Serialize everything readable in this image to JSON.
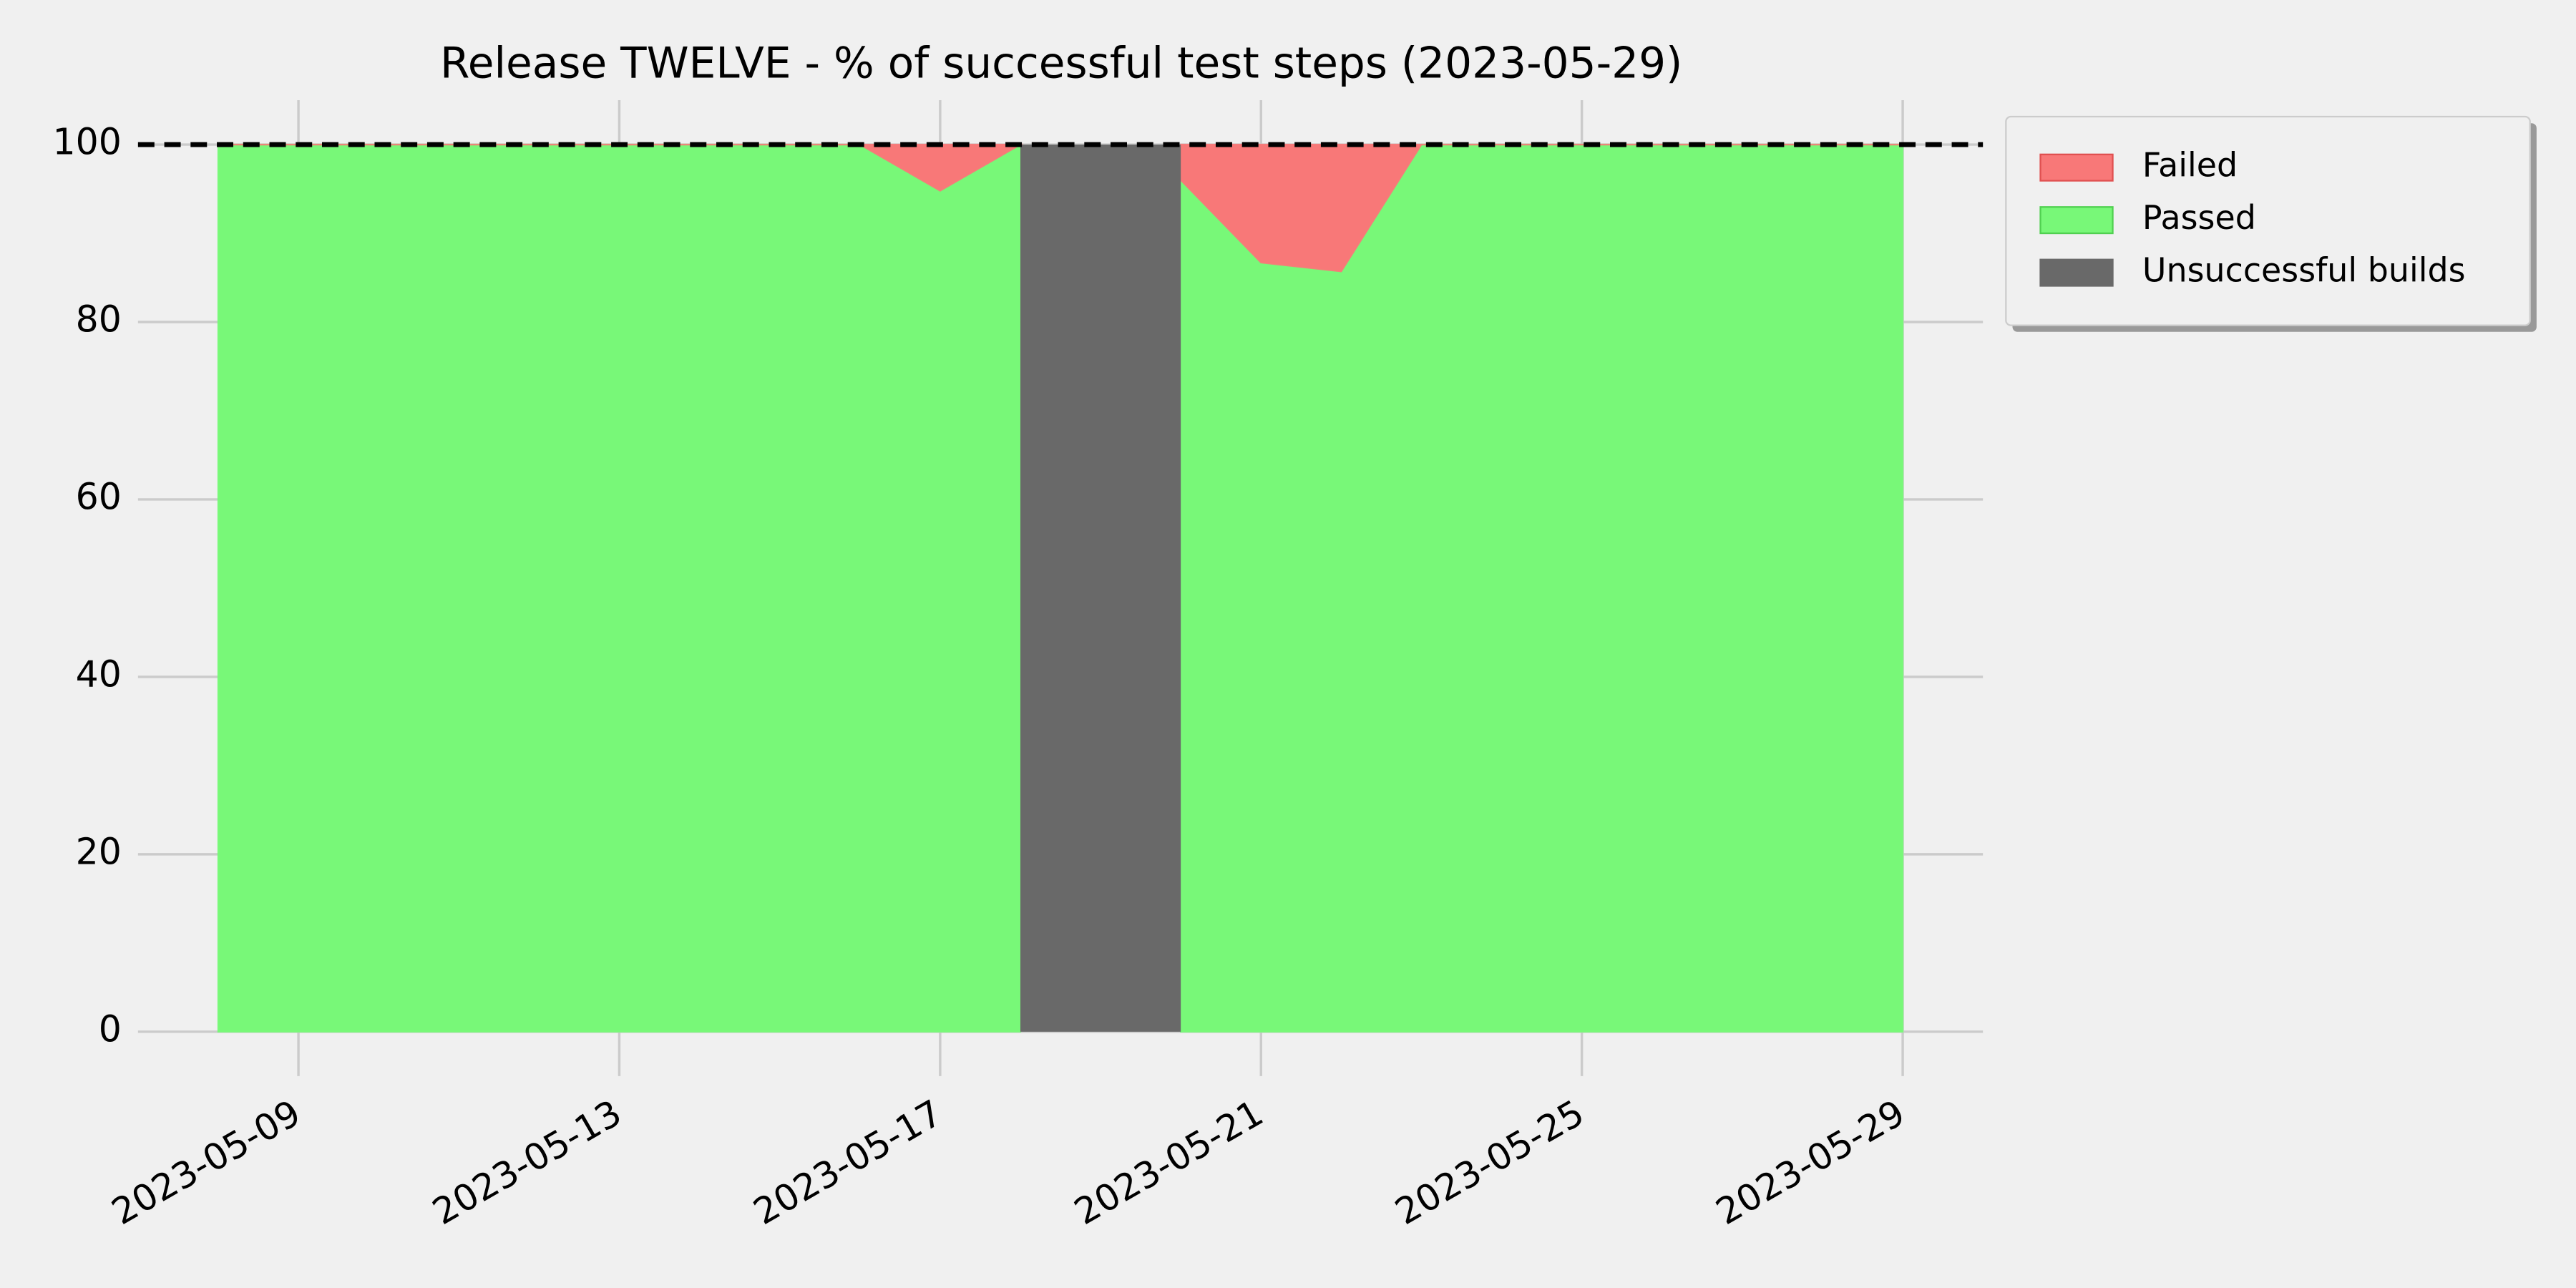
{
  "chart_data": {
    "type": "stacked-area",
    "title": "Release TWELVE - % of successful test steps (2023-05-29)",
    "x": [
      "2023-05-08",
      "2023-05-09",
      "2023-05-10",
      "2023-05-11",
      "2023-05-12",
      "2023-05-13",
      "2023-05-14",
      "2023-05-15",
      "2023-05-16",
      "2023-05-17",
      "2023-05-18",
      "2023-05-19",
      "2023-05-20",
      "2023-05-21",
      "2023-05-22",
      "2023-05-23",
      "2023-05-24",
      "2023-05-25",
      "2023-05-26",
      "2023-05-27",
      "2023-05-28",
      "2023-05-29"
    ],
    "series": [
      {
        "name": "Failed",
        "color": "#f87878",
        "values": [
          0,
          0,
          0,
          0,
          0,
          0,
          0,
          0,
          0,
          5.2,
          0,
          null,
          4,
          13.3,
          14.3,
          0,
          0,
          0,
          0,
          0,
          0,
          0
        ]
      },
      {
        "name": "Passed",
        "color": "#78f878",
        "values": [
          100,
          100,
          100,
          100,
          100,
          100,
          100,
          100,
          100,
          94.8,
          100,
          null,
          96,
          86.7,
          85.7,
          100,
          100,
          100,
          100,
          100,
          100,
          100
        ]
      }
    ],
    "unsuccessful_builds": {
      "name": "Unsuccessful builds",
      "color": "#696969",
      "start": "2023-05-18",
      "end": "2023-05-20",
      "value": 100
    },
    "threshold": 100,
    "xlim": [
      "2023-05-07",
      "2023-05-30"
    ],
    "xticks": [
      "2023-05-09",
      "2023-05-13",
      "2023-05-17",
      "2023-05-21",
      "2023-05-25",
      "2023-05-29"
    ],
    "ylim": [
      -5,
      105
    ],
    "yticks": [
      0,
      20,
      40,
      60,
      80,
      100
    ],
    "grid": true,
    "legend": "outside-right"
  }
}
